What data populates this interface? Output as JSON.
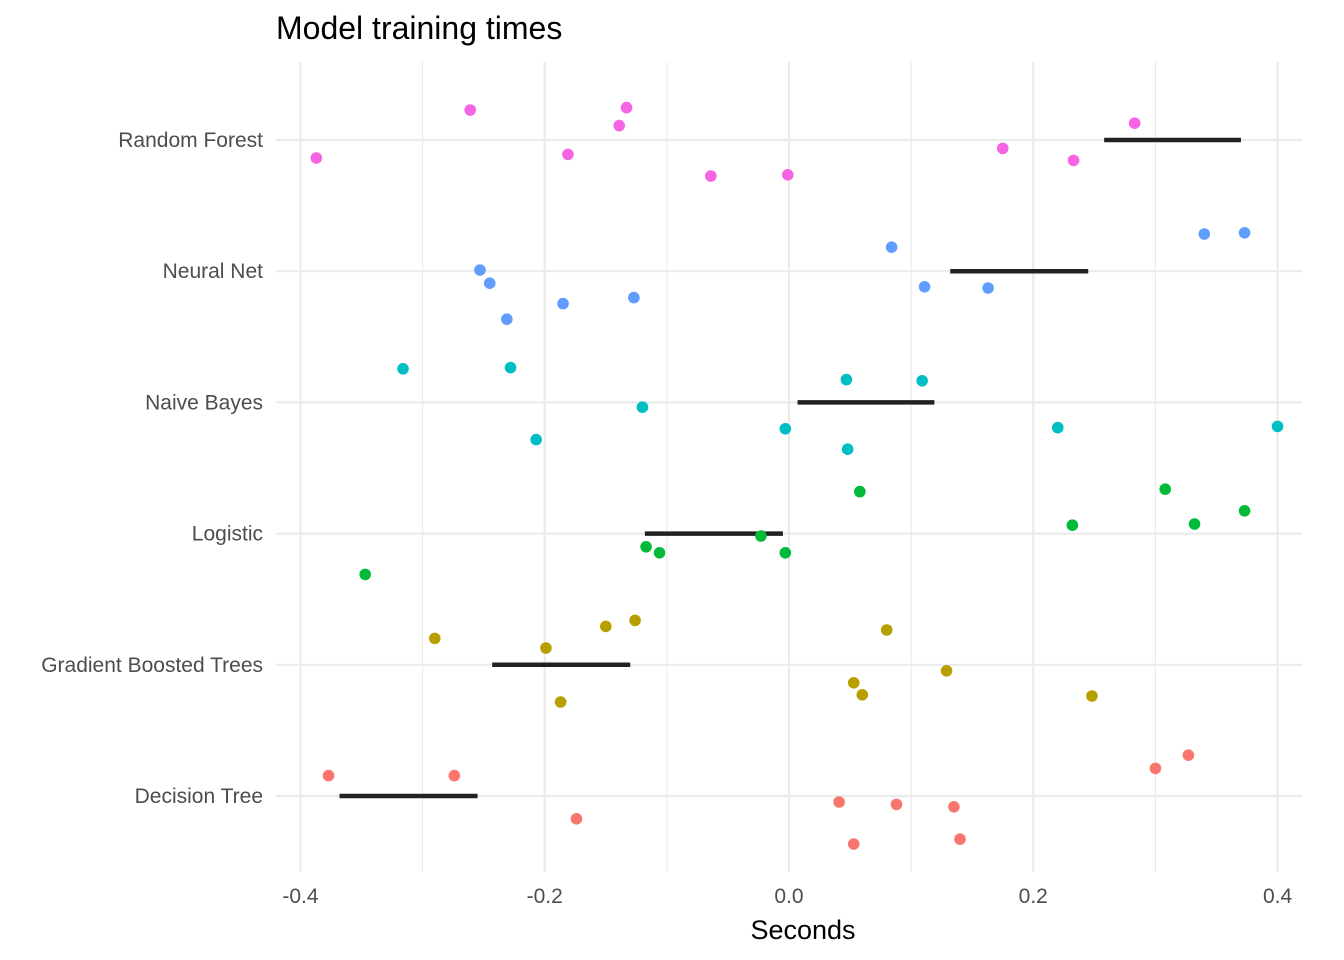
{
  "chart_data": {
    "type": "scatter",
    "title": "Model training times",
    "xlabel": "Seconds",
    "ylabel": "",
    "xlim": [
      -0.42,
      0.42
    ],
    "x_ticks": [
      -0.4,
      -0.2,
      0.0,
      0.2,
      0.4
    ],
    "x_tick_labels": [
      "-0.4",
      "-0.2",
      "0.0",
      "0.2",
      "0.4"
    ],
    "grid": true,
    "legend": "none",
    "categories": [
      "Decision Tree",
      "Gradient Boosted Trees",
      "Logistic",
      "Naive Bayes",
      "Neural Net",
      "Random Forest"
    ],
    "series": [
      {
        "category": "Decision Tree",
        "color": "#f8766d",
        "mean_range": [
          -0.368,
          -0.255
        ],
        "points": [
          {
            "x": -0.377,
            "y": 0.17
          },
          {
            "x": -0.274,
            "y": 0.17
          },
          {
            "x": 0.3,
            "y": 0.23
          },
          {
            "x": 0.327,
            "y": 0.34
          },
          {
            "x": 0.041,
            "y": -0.05
          },
          {
            "x": 0.088,
            "y": -0.07
          },
          {
            "x": 0.135,
            "y": -0.09
          },
          {
            "x": -0.174,
            "y": -0.19
          },
          {
            "x": 0.14,
            "y": -0.36
          },
          {
            "x": 0.053,
            "y": -0.4
          }
        ]
      },
      {
        "category": "Gradient Boosted Trees",
        "color": "#b79f00",
        "mean_range": [
          -0.243,
          -0.13
        ],
        "points": [
          {
            "x": -0.126,
            "y": 0.37
          },
          {
            "x": -0.15,
            "y": 0.32
          },
          {
            "x": -0.29,
            "y": 0.22
          },
          {
            "x": 0.08,
            "y": 0.29
          },
          {
            "x": -0.199,
            "y": 0.14
          },
          {
            "x": 0.129,
            "y": -0.05
          },
          {
            "x": 0.053,
            "y": -0.15
          },
          {
            "x": 0.06,
            "y": -0.25
          },
          {
            "x": 0.248,
            "y": -0.26
          },
          {
            "x": -0.187,
            "y": -0.31
          }
        ]
      },
      {
        "category": "Logistic",
        "color": "#00ba38",
        "mean_range": [
          -0.118,
          -0.005
        ],
        "points": [
          {
            "x": 0.058,
            "y": 0.35
          },
          {
            "x": 0.308,
            "y": 0.37
          },
          {
            "x": 0.373,
            "y": 0.19
          },
          {
            "x": 0.232,
            "y": 0.07
          },
          {
            "x": 0.332,
            "y": 0.08
          },
          {
            "x": -0.023,
            "y": -0.02
          },
          {
            "x": -0.117,
            "y": -0.11
          },
          {
            "x": -0.106,
            "y": -0.16
          },
          {
            "x": -0.003,
            "y": -0.16
          },
          {
            "x": -0.347,
            "y": -0.34
          }
        ]
      },
      {
        "category": "Naive Bayes",
        "color": "#00bfc4",
        "mean_range": [
          0.007,
          0.119
        ],
        "points": [
          {
            "x": -0.316,
            "y": 0.28
          },
          {
            "x": -0.228,
            "y": 0.29
          },
          {
            "x": 0.047,
            "y": 0.19
          },
          {
            "x": 0.109,
            "y": 0.18
          },
          {
            "x": -0.12,
            "y": -0.04
          },
          {
            "x": -0.003,
            "y": -0.22
          },
          {
            "x": 0.22,
            "y": -0.21
          },
          {
            "x": 0.4,
            "y": -0.2
          },
          {
            "x": -0.207,
            "y": -0.31
          },
          {
            "x": 0.048,
            "y": -0.39
          }
        ]
      },
      {
        "category": "Neural Net",
        "color": "#619cff",
        "mean_range": [
          0.132,
          0.245
        ],
        "points": [
          {
            "x": 0.34,
            "y": 0.31
          },
          {
            "x": 0.373,
            "y": 0.32
          },
          {
            "x": 0.084,
            "y": 0.2
          },
          {
            "x": -0.253,
            "y": 0.01
          },
          {
            "x": -0.245,
            "y": -0.1
          },
          {
            "x": 0.111,
            "y": -0.13
          },
          {
            "x": 0.163,
            "y": -0.14
          },
          {
            "x": -0.127,
            "y": -0.22
          },
          {
            "x": -0.185,
            "y": -0.27
          },
          {
            "x": -0.231,
            "y": -0.4
          }
        ]
      },
      {
        "category": "Random Forest",
        "color": "#f564e3",
        "mean_range": [
          0.258,
          0.37
        ],
        "points": [
          {
            "x": -0.261,
            "y": 0.25
          },
          {
            "x": -0.133,
            "y": 0.27
          },
          {
            "x": -0.139,
            "y": 0.12
          },
          {
            "x": 0.283,
            "y": 0.14
          },
          {
            "x": -0.387,
            "y": -0.15
          },
          {
            "x": -0.181,
            "y": -0.12
          },
          {
            "x": 0.175,
            "y": -0.07
          },
          {
            "x": 0.233,
            "y": -0.17
          },
          {
            "x": -0.064,
            "y": -0.3
          },
          {
            "x": -0.001,
            "y": -0.29
          }
        ]
      }
    ]
  }
}
